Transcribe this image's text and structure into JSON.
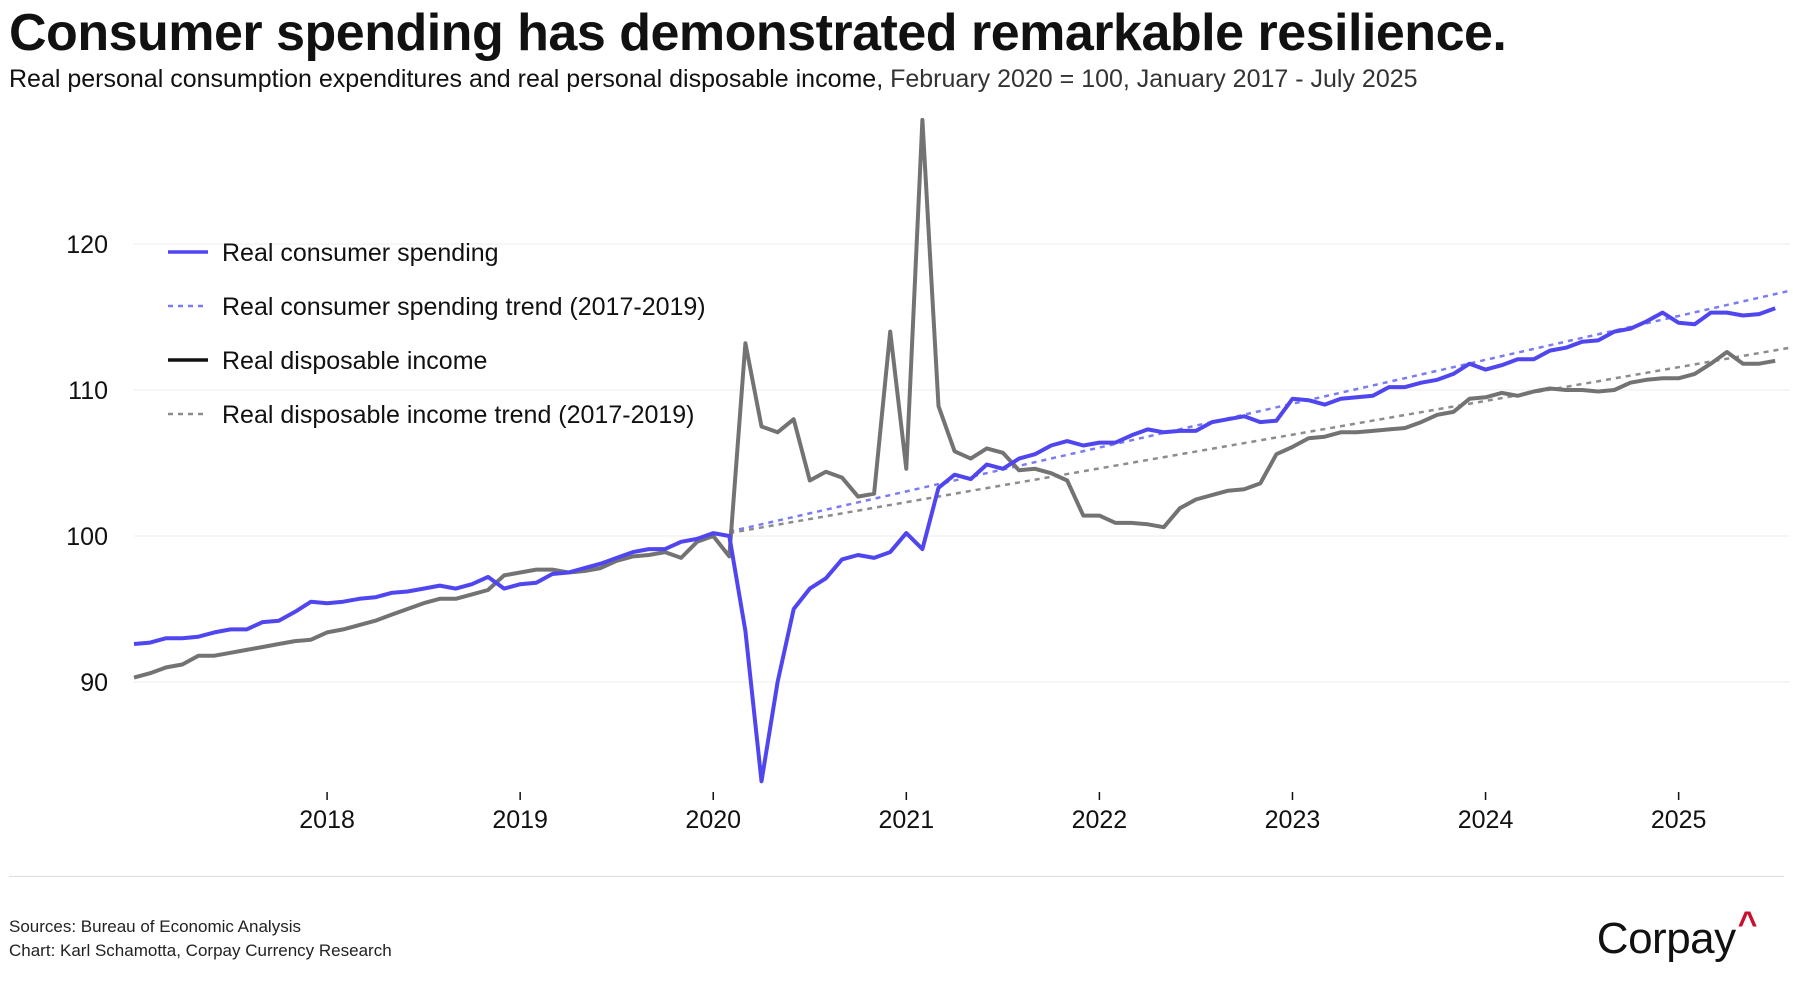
{
  "header": {
    "title": "Consumer spending has demonstrated remarkable resilience.",
    "subtitle_main": "Real personal consumption expenditures and real personal disposable income,",
    "subtitle_detail": " February 2020 = 100, January 2017 - July 2025"
  },
  "footer": {
    "sources": "Sources: Bureau of Economic Analysis",
    "credit": "Chart: Karl Schamotta, Corpay Currency Research",
    "logo": "Corpay",
    "logo_mark": "^"
  },
  "colors": {
    "spending": "#5046f0",
    "spending_trend": "#7a7cf2",
    "income": "#737373",
    "income_trend": "#8c8c8c",
    "legend_income_swatch": "#111111",
    "grid": "#eeeeee",
    "brand_accent": "#c8102e"
  },
  "chart_data": {
    "type": "line",
    "x_start": "2017-01",
    "x_end": "2025-07",
    "x_frequency": "monthly",
    "x_ticks": [
      "2018",
      "2019",
      "2020",
      "2021",
      "2022",
      "2023",
      "2024",
      "2025"
    ],
    "y_ticks": [
      90,
      100,
      110,
      120
    ],
    "ylim": [
      82,
      129
    ],
    "grid": "horizontal",
    "legend_position": "top-left",
    "series": [
      {
        "name": "Real consumer spending",
        "style": "solid",
        "values": [
          92.6,
          92.7,
          93.0,
          93.0,
          93.1,
          93.4,
          93.6,
          93.6,
          94.1,
          94.2,
          94.8,
          95.5,
          95.4,
          95.5,
          95.7,
          95.8,
          96.1,
          96.2,
          96.4,
          96.6,
          96.4,
          96.7,
          97.2,
          96.4,
          96.7,
          96.8,
          97.4,
          97.5,
          97.8,
          98.1,
          98.5,
          98.9,
          99.1,
          99.1,
          99.6,
          99.8,
          100.2,
          100.0,
          93.5,
          83.2,
          90.0,
          95.0,
          96.4,
          97.1,
          98.4,
          98.7,
          98.5,
          98.9,
          100.2,
          99.1,
          103.3,
          104.2,
          103.9,
          104.9,
          104.6,
          105.3,
          105.6,
          106.2,
          106.5,
          106.2,
          106.4,
          106.4,
          106.9,
          107.3,
          107.1,
          107.2,
          107.2,
          107.8,
          108.0,
          108.2,
          107.8,
          107.9,
          109.4,
          109.3,
          109.0,
          109.4,
          109.5,
          109.6,
          110.2,
          110.2,
          110.5,
          110.7,
          111.1,
          111.8,
          111.4,
          111.7,
          112.1,
          112.1,
          112.7,
          112.9,
          113.3,
          113.4,
          114.0,
          114.2,
          114.7,
          115.3,
          114.6,
          114.5,
          115.3,
          115.3,
          115.1,
          115.2,
          115.6
        ]
      },
      {
        "name": "Real consumer spending trend (2017-2019)",
        "style": "dashed",
        "start": "2020-02",
        "values_endpoints": [
          100.3,
          116.8
        ]
      },
      {
        "name": "Real disposable income",
        "style": "solid",
        "values": [
          90.3,
          90.6,
          91.0,
          91.2,
          91.8,
          91.8,
          92.0,
          92.2,
          92.4,
          92.6,
          92.8,
          92.9,
          93.4,
          93.6,
          93.9,
          94.2,
          94.6,
          95.0,
          95.4,
          95.7,
          95.7,
          96.0,
          96.3,
          97.3,
          97.5,
          97.7,
          97.7,
          97.5,
          97.6,
          97.8,
          98.3,
          98.6,
          98.7,
          98.9,
          98.5,
          99.6,
          100.0,
          98.6,
          113.2,
          107.5,
          107.1,
          108.0,
          103.8,
          104.4,
          104.0,
          102.7,
          102.9,
          114.0,
          104.6,
          128.5,
          108.9,
          105.8,
          105.3,
          106.0,
          105.7,
          104.5,
          104.6,
          104.3,
          103.8,
          101.4,
          101.4,
          100.9,
          100.9,
          100.8,
          100.6,
          101.9,
          102.5,
          102.8,
          103.1,
          103.2,
          103.6,
          105.6,
          106.1,
          106.7,
          106.8,
          107.1,
          107.1,
          107.2,
          107.3,
          107.4,
          107.8,
          108.3,
          108.5,
          109.4,
          109.5,
          109.8,
          109.6,
          109.9,
          110.1,
          110.0,
          110.0,
          109.9,
          110.0,
          110.5,
          110.7,
          110.8,
          110.8,
          111.1,
          111.8,
          112.6,
          111.8,
          111.8,
          112.0
        ]
      },
      {
        "name": "Real disposable income trend (2017-2019)",
        "style": "dashed",
        "start": "2020-02",
        "values_endpoints": [
          100.2,
          112.9
        ]
      }
    ]
  }
}
